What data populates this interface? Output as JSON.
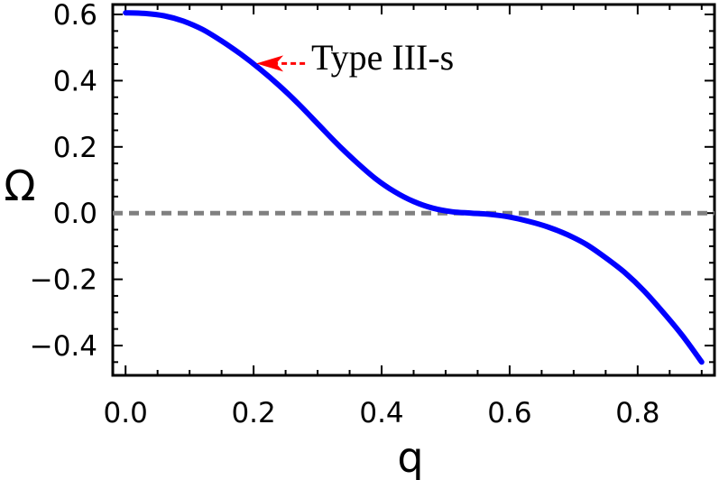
{
  "chart_data": {
    "type": "line",
    "xlabel": "q",
    "ylabel": "Ω",
    "xlim": [
      -0.02,
      0.92
    ],
    "ylim": [
      -0.49,
      0.63
    ],
    "x_ticks": [
      0.0,
      0.2,
      0.4,
      0.6,
      0.8
    ],
    "y_ticks": [
      0.6,
      0.4,
      0.2,
      0.0,
      -0.2,
      -0.4
    ],
    "x_tick_labels": [
      "0.0",
      "0.2",
      "0.4",
      "0.6",
      "0.8"
    ],
    "y_tick_labels": [
      "0.6",
      "0.4",
      "0.2",
      "0.0",
      "−0.2",
      "−0.4"
    ],
    "grid": false,
    "series": [
      {
        "color": "#0000ff",
        "x": [
          0.0,
          0.03,
          0.06,
          0.09,
          0.12,
          0.15,
          0.18,
          0.21,
          0.24,
          0.27,
          0.3,
          0.33,
          0.36,
          0.39,
          0.42,
          0.45,
          0.48,
          0.51,
          0.54,
          0.57,
          0.6,
          0.63,
          0.66,
          0.69,
          0.72,
          0.75,
          0.78,
          0.81,
          0.84,
          0.87,
          0.9
        ],
        "y": [
          0.605,
          0.603,
          0.596,
          0.58,
          0.555,
          0.52,
          0.48,
          0.435,
          0.385,
          0.33,
          0.27,
          0.21,
          0.155,
          0.105,
          0.065,
          0.035,
          0.015,
          0.004,
          0.0,
          -0.004,
          -0.012,
          -0.025,
          -0.042,
          -0.065,
          -0.095,
          -0.135,
          -0.18,
          -0.235,
          -0.3,
          -0.37,
          -0.45
        ]
      }
    ],
    "reference_line": {
      "y": 0,
      "color": "#808080",
      "style": "dashed"
    },
    "annotation": {
      "text": "Type III-s",
      "arrow_color": "#ff0000",
      "target": [
        0.2,
        0.49
      ]
    }
  }
}
